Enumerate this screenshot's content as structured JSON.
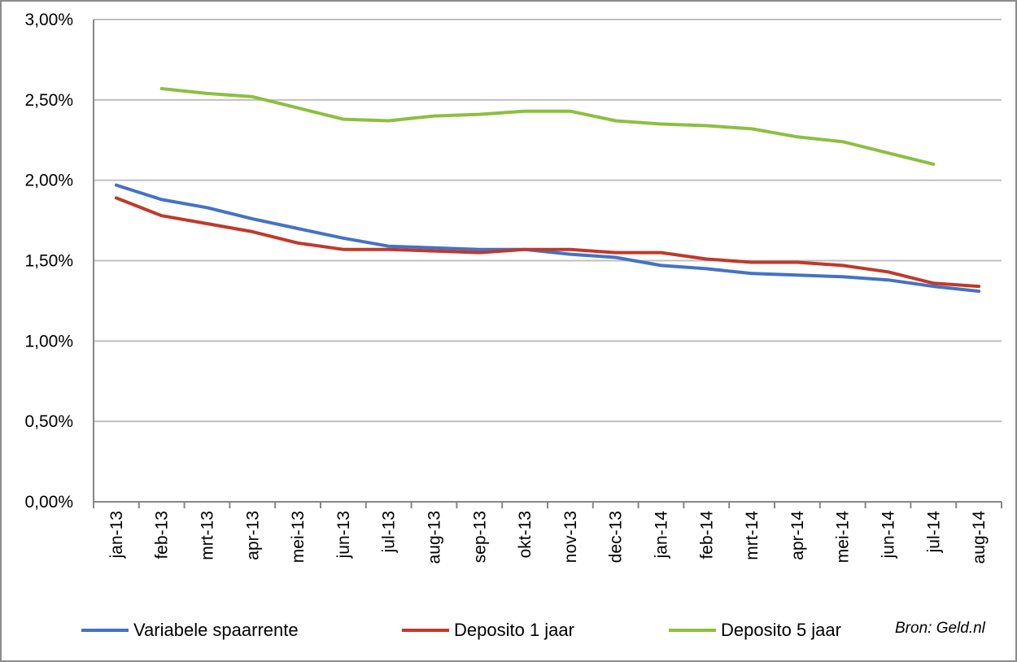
{
  "chart_data": {
    "type": "line",
    "categories": [
      "jan-13",
      "feb-13",
      "mrt-13",
      "apr-13",
      "mei-13",
      "jun-13",
      "jul-13",
      "aug-13",
      "sep-13",
      "okt-13",
      "nov-13",
      "dec-13",
      "jan-14",
      "feb-14",
      "mrt-14",
      "apr-14",
      "mei-14",
      "jun-14",
      "jul-14",
      "aug-14"
    ],
    "y_ticks": [
      "0,00%",
      "0,50%",
      "1,00%",
      "1,50%",
      "2,00%",
      "2,50%",
      "3,00%"
    ],
    "ylim": [
      0,
      3.0
    ],
    "grid": true,
    "legend_position": "bottom",
    "series": [
      {
        "name": "Variabele spaarrente",
        "color": "#4472c4",
        "values": [
          1.97,
          1.88,
          1.83,
          1.76,
          1.7,
          1.64,
          1.59,
          1.58,
          1.57,
          1.57,
          1.54,
          1.52,
          1.47,
          1.45,
          1.42,
          1.41,
          1.4,
          1.38,
          1.34,
          1.31
        ]
      },
      {
        "name": "Deposito 1 jaar",
        "color": "#c0392b",
        "values": [
          1.89,
          1.78,
          1.73,
          1.68,
          1.61,
          1.57,
          1.57,
          1.56,
          1.55,
          1.57,
          1.57,
          1.55,
          1.55,
          1.51,
          1.49,
          1.49,
          1.47,
          1.43,
          1.36,
          1.34
        ]
      },
      {
        "name": "Deposito 5 jaar",
        "color": "#8cbf3f",
        "values": [
          null,
          2.57,
          2.54,
          2.52,
          2.45,
          2.38,
          2.37,
          2.4,
          2.41,
          2.43,
          2.43,
          2.37,
          2.35,
          2.34,
          2.32,
          2.27,
          2.24,
          2.17,
          2.1,
          null
        ]
      }
    ],
    "source": "Bron: Geld.nl"
  }
}
